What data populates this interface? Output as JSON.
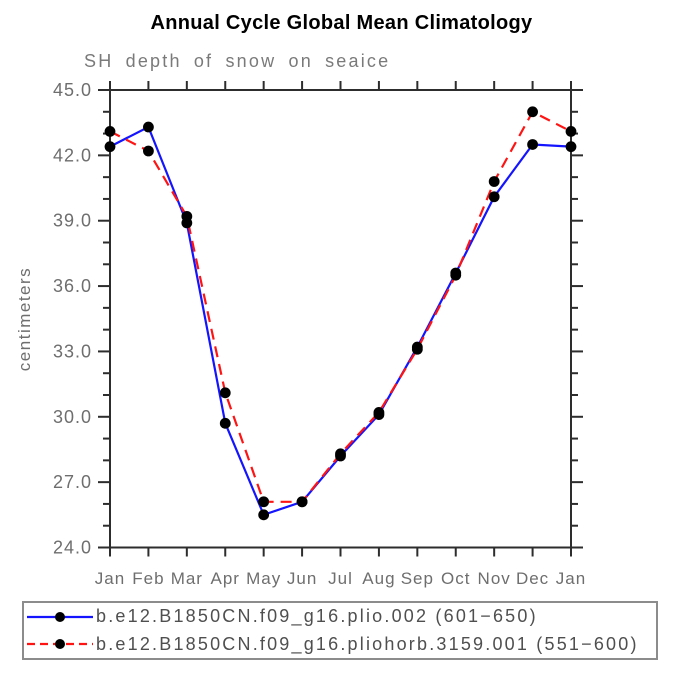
{
  "chart_data": {
    "type": "line",
    "title": "Annual Cycle Global Mean Climatology",
    "subtitle": "SH depth of snow on seaice",
    "ylabel": "centimeters",
    "xlabel": "",
    "categories": [
      "Jan",
      "Feb",
      "Mar",
      "Apr",
      "May",
      "Jun",
      "Jul",
      "Aug",
      "Sep",
      "Oct",
      "Nov",
      "Dec",
      "Jan"
    ],
    "ylim": [
      24.0,
      45.0
    ],
    "ytick_major_step": 3.0,
    "ytick_minor_step": 1.0,
    "ytick_label_format": "one-decimal",
    "grid": false,
    "legend_position": "bottom",
    "series": [
      {
        "name": "b.e12.B1850CN.f09_g16.plio.002 (601−650)",
        "line_style": "solid",
        "line_color": "#1414ff",
        "marker": "filled-circle",
        "marker_color": "#000000",
        "values": [
          42.4,
          43.3,
          38.9,
          29.7,
          25.5,
          26.1,
          28.2,
          30.1,
          33.2,
          36.6,
          40.1,
          42.5,
          42.4
        ]
      },
      {
        "name": "b.e12.B1850CN.f09_g16.pliohorb.3159.001 (551−600)",
        "line_style": "dashed",
        "line_color": "#ff1414",
        "marker": "filled-circle",
        "marker_color": "#000000",
        "values": [
          43.1,
          42.2,
          39.2,
          31.1,
          26.1,
          26.1,
          28.3,
          30.2,
          33.1,
          36.5,
          40.8,
          44.0,
          43.1
        ]
      }
    ],
    "colors": {
      "background": "#ffffff",
      "title": "#000000",
      "subtitle": "#7a7a7a",
      "axis": "#2d2d2d",
      "tick_label": "#6e6e6e",
      "legend_text": "#4f4f4f",
      "legend_border": "#8c8c8c"
    }
  }
}
